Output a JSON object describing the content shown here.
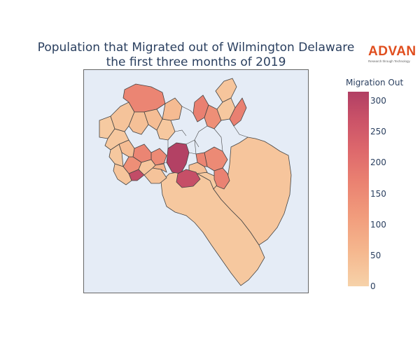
{
  "title": {
    "line1": "Population that Migrated out of Wilmington Delaware",
    "line2": "the first three months of 2019"
  },
  "brand": {
    "name": "ADVAN",
    "tagline": "Research through Technology",
    "color": "#e04e1e"
  },
  "colorbar": {
    "title": "Migration Out",
    "min": 0,
    "max": 315,
    "ticks": [
      "0",
      "50",
      "100",
      "150",
      "200",
      "250",
      "300"
    ],
    "colorscale": [
      "#f6d2a9",
      "#f5b78e",
      "#f19c7c",
      "#ea8171",
      "#dd686c",
      "#ca5268",
      "#b13f64"
    ]
  },
  "map": {
    "background": "#e5ecf6",
    "border_color": "#444444",
    "region_values": [
      [
        "west-fringe-1",
        15
      ],
      [
        "west-fringe-2",
        20
      ],
      [
        "west-fringe-3",
        25
      ],
      [
        "northwest-a",
        30
      ],
      [
        "northwest-high",
        150
      ],
      [
        "north-row-1",
        35
      ],
      [
        "north-row-2",
        40
      ],
      [
        "north-row-3",
        20
      ],
      [
        "north-row-4",
        45
      ],
      [
        "north-strip-high",
        160
      ],
      [
        "north-strip-mid",
        130
      ],
      [
        "northeast-finger-1",
        25
      ],
      [
        "northeast-finger-2",
        20
      ],
      [
        "northeast-high",
        160
      ],
      [
        "central-1",
        30
      ],
      [
        "central-2",
        140
      ],
      [
        "central-3",
        60
      ],
      [
        "central-4",
        150
      ],
      [
        "central-5",
        25
      ],
      [
        "central-6",
        130
      ],
      [
        "central-7",
        40
      ],
      [
        "central-8",
        20
      ],
      [
        "downtown-peak",
        310
      ],
      [
        "downtown-adjacent",
        270
      ],
      [
        "southwest-high",
        280
      ],
      [
        "south-central-1",
        35
      ],
      [
        "south-central-2",
        150
      ],
      [
        "east-mid",
        140
      ],
      [
        "east-high",
        155
      ],
      [
        "southeast-large",
        25
      ],
      [
        "south-large",
        20
      ],
      [
        "riverfront",
        15
      ]
    ]
  }
}
